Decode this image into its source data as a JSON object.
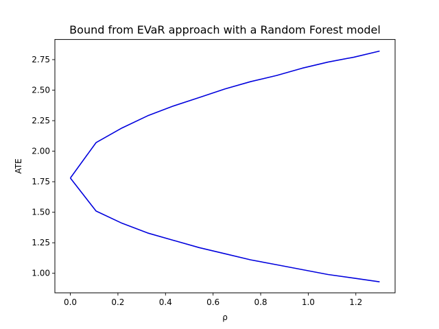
{
  "chart_data": {
    "type": "line",
    "title": "Bound from EVaR approach with a Random Forest model",
    "xlabel": "ρ",
    "ylabel": "ATE",
    "xlim": [
      -0.065,
      1.365
    ],
    "ylim": [
      0.84,
      2.915
    ],
    "xticks": [
      0.0,
      0.2,
      0.4,
      0.6,
      0.8,
      1.0,
      1.2
    ],
    "xtick_labels": [
      "0.0",
      "0.2",
      "0.4",
      "0.6",
      "0.8",
      "1.0",
      "1.2"
    ],
    "yticks": [
      1.0,
      1.25,
      1.5,
      1.75,
      2.0,
      2.25,
      2.5,
      2.75
    ],
    "ytick_labels": [
      "1.00",
      "1.25",
      "1.50",
      "1.75",
      "2.00",
      "2.25",
      "2.50",
      "2.75"
    ],
    "grid": false,
    "legend": "none",
    "series": [
      {
        "color": "#0000dd",
        "x": [
          0.0,
          0.108,
          0.217,
          0.325,
          0.433,
          0.542,
          0.65,
          0.758,
          0.867,
          0.975,
          1.083,
          1.192,
          1.3
        ],
        "y": [
          1.78,
          2.07,
          2.19,
          2.29,
          2.37,
          2.44,
          2.51,
          2.57,
          2.62,
          2.68,
          2.73,
          2.77,
          2.82
        ]
      },
      {
        "color": "#0000dd",
        "x": [
          0.0,
          0.108,
          0.217,
          0.325,
          0.433,
          0.542,
          0.65,
          0.758,
          0.867,
          0.975,
          1.083,
          1.192,
          1.3
        ],
        "y": [
          1.78,
          1.51,
          1.41,
          1.33,
          1.27,
          1.21,
          1.16,
          1.11,
          1.07,
          1.03,
          0.99,
          0.96,
          0.93
        ]
      }
    ]
  }
}
